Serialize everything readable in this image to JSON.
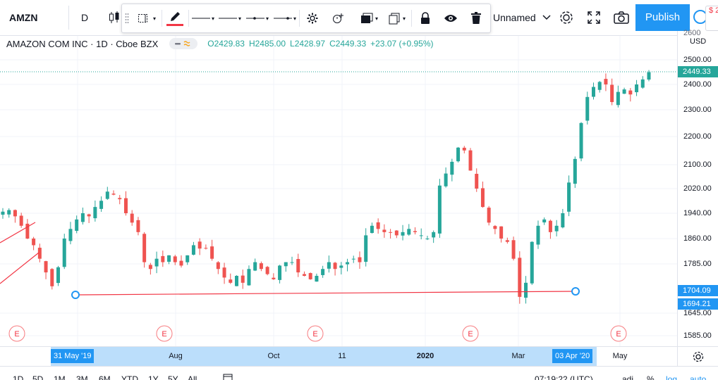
{
  "header": {
    "symbol": "AMZN",
    "interval": "D",
    "layout_name": "Unnamed",
    "publish_label": "Publish",
    "right_stub_text": "$ 2",
    "icons": [
      "candles-icon",
      "rectangle-select-icon",
      "pencil-icon",
      "line-style-icon",
      "line-width-icon",
      "line-ends-icon",
      "arrow-line-icon",
      "settings-icon",
      "alert-clock-icon",
      "visual-order-icon",
      "clone-icon",
      "lock-icon",
      "eye-icon",
      "trash-icon",
      "gear-icon",
      "fullscreen-icon",
      "camera-icon"
    ],
    "colors": {
      "pencil_underline": "#f23645",
      "publish_bg": "#2196f3"
    }
  },
  "legend": {
    "title": "AMAZON COM INC · 1D · Cboe BZX",
    "open": "O2429.83",
    "high": "H2485.00",
    "low": "L2428.97",
    "close": "C2449.33",
    "change": "+23.07 (+0.95%)"
  },
  "price_scale": {
    "currency": "USD",
    "labels": [
      "2500.00",
      "2400.00",
      "2300.00",
      "2200.00",
      "2100.00",
      "2020.00",
      "1940.00",
      "1860.00",
      "1785.00",
      "1645.00",
      "1585.00"
    ],
    "last_price_tag": "2449.33",
    "line_tags": [
      "1704.09",
      "1694.21"
    ],
    "top_partial": "2600"
  },
  "time_scale": {
    "labels": [
      "Aug",
      "Oct",
      "11",
      "2020",
      "Mar",
      "May"
    ],
    "bold_label": "2020",
    "range_start_tag": "31 May '19",
    "range_end_tag": "03 Apr '20"
  },
  "earnings_marker": "E",
  "bottom_bar": {
    "ranges": [
      "1D",
      "5D",
      "1M",
      "3M",
      "6M",
      "YTD",
      "1Y",
      "5Y",
      "All"
    ],
    "time": "07:19:22 (UTC)",
    "right": [
      "adj",
      "%",
      "log",
      "auto"
    ]
  },
  "chart_data": {
    "type": "candlestick",
    "title": "AMAZON COM INC · 1D · Cboe BZX",
    "xlabel": "",
    "ylabel": "",
    "ylim": [
      1560,
      2620
    ],
    "y_scale": "log",
    "dates_start": "2019-05-01",
    "dates_end": "2020-05-22",
    "up_color": "#26a69a",
    "down_color": "#ef5350",
    "closes_approx": [
      1945,
      1950,
      1930,
      1900,
      1860,
      1840,
      1800,
      1760,
      1720,
      1775,
      1860,
      1890,
      1920,
      1940,
      1930,
      1960,
      1980,
      2010,
      2000,
      1985,
      1940,
      1910,
      1880,
      1790,
      1770,
      1800,
      1790,
      1810,
      1790,
      1780,
      1810,
      1840,
      1830,
      1830,
      1800,
      1770,
      1745,
      1730,
      1750,
      1730,
      1770,
      1790,
      1770,
      1755,
      1740,
      1780,
      1790,
      1790,
      1760,
      1750,
      1740,
      1750,
      1770,
      1790,
      1770,
      1780,
      1790,
      1800,
      1790,
      1870,
      1900,
      1890,
      1880,
      1880,
      1870,
      1880,
      1890,
      1880,
      1870,
      1860,
      1880,
      2030,
      2070,
      2110,
      2160,
      2150,
      2080,
      2020,
      1960,
      1910,
      1890,
      1860,
      1850,
      1800,
      1690,
      1730,
      1850,
      1900,
      1920,
      1880,
      1900,
      1940,
      2040,
      2120,
      2250,
      2350,
      2390,
      2410,
      2400,
      2330,
      2370,
      2380,
      2360,
      2400,
      2420,
      2449
    ]
  }
}
